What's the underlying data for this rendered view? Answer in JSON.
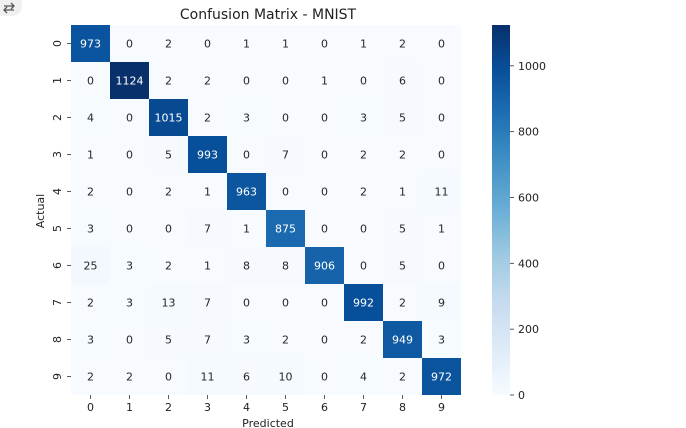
{
  "chart_data": {
    "type": "heatmap",
    "title": "Confusion Matrix - MNIST",
    "xlabel": "Predicted",
    "ylabel": "Actual",
    "x_categories": [
      "0",
      "1",
      "2",
      "3",
      "4",
      "5",
      "6",
      "7",
      "8",
      "9"
    ],
    "y_categories": [
      "0",
      "1",
      "2",
      "3",
      "4",
      "5",
      "6",
      "7",
      "8",
      "9"
    ],
    "values": [
      [
        973,
        0,
        2,
        0,
        1,
        1,
        0,
        1,
        2,
        0
      ],
      [
        0,
        1124,
        2,
        2,
        0,
        0,
        1,
        0,
        6,
        0
      ],
      [
        4,
        0,
        1015,
        2,
        3,
        0,
        0,
        3,
        5,
        0
      ],
      [
        1,
        0,
        5,
        993,
        0,
        7,
        0,
        2,
        2,
        0
      ],
      [
        2,
        0,
        2,
        1,
        963,
        0,
        0,
        2,
        1,
        11
      ],
      [
        3,
        0,
        0,
        7,
        1,
        875,
        0,
        0,
        5,
        1
      ],
      [
        25,
        3,
        2,
        1,
        8,
        8,
        906,
        0,
        5,
        0
      ],
      [
        2,
        3,
        13,
        7,
        0,
        0,
        0,
        992,
        2,
        9
      ],
      [
        3,
        0,
        5,
        7,
        3,
        2,
        0,
        2,
        949,
        3
      ],
      [
        2,
        2,
        0,
        11,
        6,
        10,
        0,
        4,
        2,
        972
      ]
    ],
    "colorbar": {
      "colormap": "Blues",
      "range": [
        0,
        1124
      ],
      "ticks": [
        0,
        200,
        400,
        600,
        800,
        1000
      ],
      "colors": [
        "#f7fbff",
        "#deebf7",
        "#c6dbef",
        "#9ecae1",
        "#6baed6",
        "#4292c6",
        "#2171b5",
        "#08519c",
        "#08306b"
      ]
    },
    "grid": false
  },
  "icons": {
    "corner": "collapse-icon"
  }
}
